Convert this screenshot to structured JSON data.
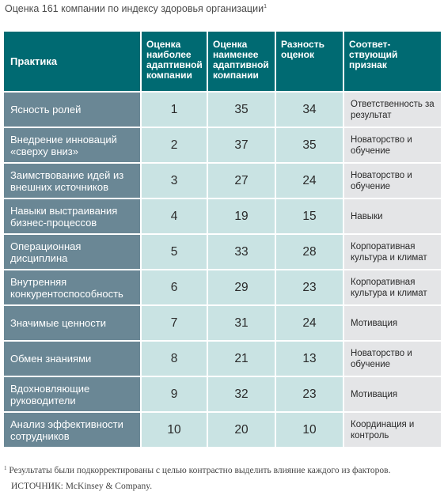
{
  "title": "Оценка 161 компании по индексу здоровья организации",
  "title_sup": "1",
  "headers": [
    "Практика",
    "Оценка наиболее адаптивной компании",
    "Оценка наименее адаптивной компании",
    "Разность оценок",
    "Соответ-ствующий признак"
  ],
  "rows": [
    {
      "practice": "Ясность ролей",
      "best": "1",
      "worst": "35",
      "diff": "34",
      "sign": "Ответственность за результат"
    },
    {
      "practice": "Внедрение инноваций «сверху вниз»",
      "best": "2",
      "worst": "37",
      "diff": "35",
      "sign": "Новаторство и обучение"
    },
    {
      "practice": "Заимствование идей из внешних источников",
      "best": "3",
      "worst": "27",
      "diff": "24",
      "sign": "Новаторство и обучение"
    },
    {
      "practice": "Навыки выстраивания бизнес-процессов",
      "best": "4",
      "worst": "19",
      "diff": "15",
      "sign": "Навыки"
    },
    {
      "practice": "Операционная дисциплина",
      "best": "5",
      "worst": "33",
      "diff": "28",
      "sign": "Корпоративная культура и климат"
    },
    {
      "practice": "Внутренняя конкурентоспособность",
      "best": "6",
      "worst": "29",
      "diff": "23",
      "sign": "Корпоративная культура и климат"
    },
    {
      "practice": "Значимые ценности",
      "best": "7",
      "worst": "31",
      "diff": "24",
      "sign": "Мотивация"
    },
    {
      "practice": "Обмен знаниями",
      "best": "8",
      "worst": "21",
      "diff": "13",
      "sign": "Новаторство и обучение"
    },
    {
      "practice": "Вдохновляющие руководители",
      "best": "9",
      "worst": "32",
      "diff": "23",
      "sign": "Мотивация"
    },
    {
      "practice": "Анализ эффективности сотрудников",
      "best": "10",
      "worst": "20",
      "diff": "10",
      "sign": "Координация и контроль"
    }
  ],
  "footnote_sup": "1",
  "footnote": "Результаты были подкорректированы с целью контрастно выделить влияние каждого из факторов.",
  "source": "ИСТОЧНИК: McKinsey & Company.",
  "colors": {
    "header": "#006a72",
    "practice": "#6a8795",
    "teal_cell": "#c9e3e3",
    "grey_cell": "#e4e5e7"
  }
}
